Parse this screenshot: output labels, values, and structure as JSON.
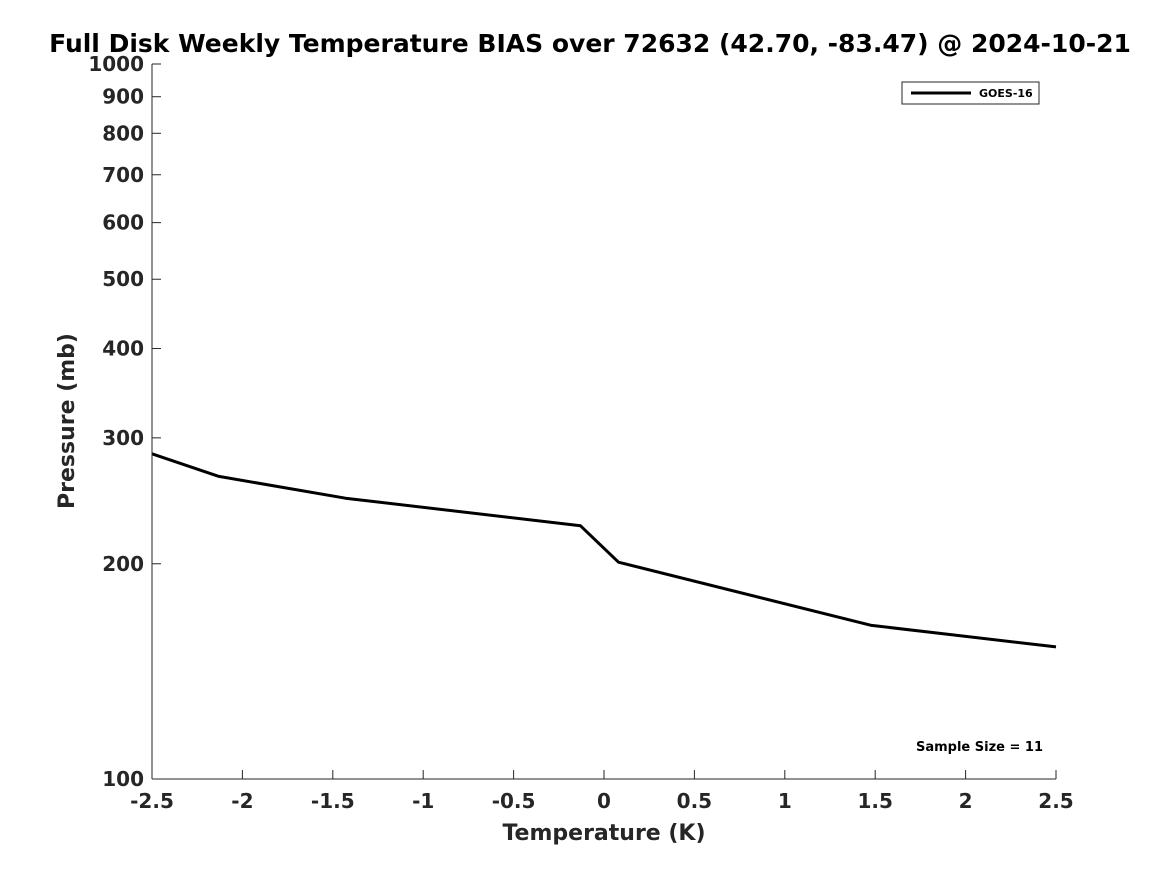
{
  "chart_data": {
    "type": "line",
    "title": "Full Disk Weekly Temperature BIAS over 72632 (42.70, -83.47) @ 2024-10-21",
    "xlabel": "Temperature (K)",
    "ylabel": "Pressure (mb)",
    "xlim": [
      -2.5,
      2.5
    ],
    "ylim": [
      1000,
      100
    ],
    "yscale": "log",
    "y_reversed": true,
    "grid": false,
    "x_ticks": [
      -2.5,
      -2,
      -1.5,
      -1,
      -0.5,
      0,
      0.5,
      1,
      1.5,
      2,
      2.5
    ],
    "x_tick_labels": [
      "-2.5",
      "-2",
      "-1.5",
      "-1",
      "-0.5",
      "0",
      "0.5",
      "1",
      "1.5",
      "2",
      "2.5"
    ],
    "y_ticks": [
      100,
      200,
      300,
      400,
      500,
      600,
      700,
      800,
      900,
      1000
    ],
    "y_tick_labels": [
      "100",
      "200",
      "300",
      "400",
      "500",
      "600",
      "700",
      "800",
      "900",
      "1000"
    ],
    "legend_position": "top-right",
    "series": [
      {
        "name": "GOES-16",
        "color": "#000000",
        "x": [
          -2.5,
          -2.13,
          -1.43,
          -0.13,
          0.08,
          1.48,
          2.5
        ],
        "y": [
          285,
          265,
          247,
          226,
          201,
          164,
          153
        ]
      }
    ],
    "annotation": "Sample Size = 11"
  }
}
